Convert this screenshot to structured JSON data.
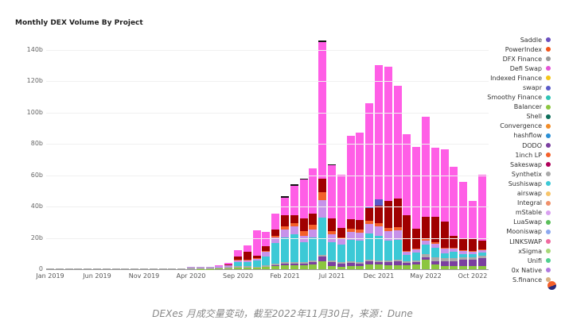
{
  "chart_data": {
    "type": "bar",
    "stacked": true,
    "title": "Monthly DEX Volume By Project",
    "xlabel": "",
    "ylabel": "",
    "ylim": [
      0,
      140
    ],
    "y_unit": "b",
    "yticks": [
      "0",
      "20b",
      "40b",
      "60b",
      "80b",
      "100b",
      "120b",
      "140b"
    ],
    "xticks": [
      "Jan 2019",
      "Jun 2019",
      "Nov 2019",
      "Apr 2020",
      "Sep 2020",
      "Feb 2021",
      "Jul 2021",
      "Dec 2021",
      "May 2022",
      "Oct 2022"
    ],
    "grid": true,
    "legend_position": "right",
    "legend": [
      "Saddle",
      "PowerIndex",
      "DFX Finance",
      "Defi Swap",
      "Indexed Finance",
      "swapr",
      "Smoothy Finance",
      "Balancer",
      "Shell",
      "Convergence",
      "hashflow",
      "DODO",
      "1inch LP",
      "Sakeswap",
      "Synthetix",
      "Sushiswap",
      "airswap",
      "Integral",
      "mStable",
      "LuaSwap",
      "Mooniswap",
      "LINKSWAP",
      "xSigma",
      "Unifi",
      "0x Native",
      "S.finance"
    ],
    "legend_colors": [
      "#6a4fbf",
      "#f2541b",
      "#999999",
      "#e455d6",
      "#f5c518",
      "#5a5ac8",
      "#2ec4b6",
      "#8cc63f",
      "#0d6e5a",
      "#f28c28",
      "#2a8fd6",
      "#7b3fa0",
      "#f4602a",
      "#b0005a",
      "#aaaaaa",
      "#3cc9d6",
      "#f7c56b",
      "#f0906a",
      "#d9a0f0",
      "#5bbf5b",
      "#8ca8f0",
      "#f06aa0",
      "#a8d878",
      "#4fd090",
      "#b07ae0",
      "#d8b080"
    ],
    "series_colors": {
      "Balancer": "#8cc63f",
      "DODO": "#7b3fa0",
      "Synthetix": "#aaaaaa",
      "Sushiswap": "#3cc9d6",
      "mStable": "#c792ea",
      "1inch LP": "#f4602a",
      "Sakeswap": "#a00000",
      "swapr": "#5a5ac8",
      "Defi Swap": "#ff5ee6",
      "Saddle": "#111111"
    },
    "months": [
      "2019-01",
      "2019-02",
      "2019-03",
      "2019-04",
      "2019-05",
      "2019-06",
      "2019-07",
      "2019-08",
      "2019-09",
      "2019-10",
      "2019-11",
      "2019-12",
      "2020-01",
      "2020-02",
      "2020-03",
      "2020-04",
      "2020-05",
      "2020-06",
      "2020-07",
      "2020-08",
      "2020-09",
      "2020-10",
      "2020-11",
      "2020-12",
      "2021-01",
      "2021-02",
      "2021-03",
      "2021-04",
      "2021-05",
      "2021-06",
      "2021-07",
      "2021-08",
      "2021-09",
      "2021-10",
      "2021-11",
      "2021-12",
      "2022-01",
      "2022-02",
      "2022-03",
      "2022-04",
      "2022-05",
      "2022-06",
      "2022-07",
      "2022-08",
      "2022-09",
      "2022-10",
      "2022-11"
    ],
    "series": [
      {
        "name": "Balancer",
        "values": [
          0,
          0,
          0,
          0,
          0,
          0,
          0,
          0,
          0,
          0,
          0,
          0,
          0,
          0,
          0,
          0,
          0.1,
          0.2,
          0.3,
          0.5,
          1,
          1,
          1,
          1.5,
          2,
          2.5,
          2.5,
          2.5,
          3,
          5,
          2,
          1.5,
          2,
          2,
          3,
          3,
          2.5,
          2.5,
          2.5,
          3,
          6,
          3,
          2,
          2,
          2,
          2,
          2
        ]
      },
      {
        "name": "DODO",
        "values": [
          0,
          0,
          0,
          0,
          0,
          0,
          0,
          0,
          0,
          0,
          0,
          0,
          0,
          0,
          0,
          0,
          0,
          0,
          0,
          0,
          0,
          0,
          0,
          0,
          0.5,
          1,
          1,
          1,
          1.5,
          3,
          2.5,
          2,
          2,
          1.5,
          2,
          1.5,
          2,
          2.5,
          1.5,
          1.5,
          1.5,
          2,
          3,
          3,
          4,
          4,
          5
        ]
      },
      {
        "name": "Synthetix",
        "values": [
          0.3,
          0.3,
          0.3,
          0.3,
          0.3,
          0.3,
          0.3,
          0.3,
          0.3,
          0.3,
          0.3,
          0.3,
          0.4,
          0.5,
          0.6,
          0.8,
          0.8,
          0.6,
          0.8,
          1,
          0.8,
          0.8,
          0.6,
          0.8,
          1,
          1,
          1,
          1,
          1,
          1,
          1,
          1,
          1,
          1,
          1,
          1,
          1,
          1,
          1,
          1,
          2,
          2.5,
          2,
          2,
          1.5,
          1.5,
          1.5
        ]
      },
      {
        "name": "Sushiswap",
        "values": [
          0,
          0,
          0,
          0,
          0,
          0,
          0,
          0,
          0,
          0,
          0,
          0,
          0,
          0,
          0,
          0,
          0,
          0,
          0,
          0,
          3,
          3,
          4,
          6,
          13,
          16,
          18,
          13,
          15,
          24,
          12,
          11,
          14,
          14,
          17,
          16,
          13,
          13,
          4,
          5,
          6,
          6,
          3,
          4,
          2,
          2,
          2
        ]
      },
      {
        "name": "mStable",
        "values": [
          0,
          0,
          0,
          0,
          0,
          0,
          0,
          0,
          0,
          0,
          0,
          0,
          0,
          0,
          0,
          0.5,
          0.8,
          0.8,
          0.8,
          1,
          1,
          1,
          1,
          3,
          4,
          5,
          5,
          4,
          5,
          11,
          5,
          4,
          5,
          5,
          6,
          6,
          6,
          6,
          2,
          2,
          3,
          3,
          3,
          2,
          2,
          1.5,
          1.5
        ]
      },
      {
        "name": "1inch LP",
        "values": [
          0,
          0,
          0,
          0,
          0,
          0,
          0,
          0,
          0,
          0,
          0,
          0,
          0,
          0,
          0,
          0,
          0,
          0,
          0,
          0,
          0.3,
          0.3,
          0.3,
          0.5,
          1,
          2,
          2,
          3,
          3,
          5,
          2,
          1,
          2,
          2,
          2,
          2,
          2,
          2,
          0.5,
          0.5,
          1,
          1,
          0.5,
          0.5,
          0.5,
          0.5,
          0.5
        ]
      },
      {
        "name": "Sakeswap",
        "values": [
          0,
          0,
          0,
          0,
          0,
          0,
          0,
          0,
          0,
          0,
          0,
          0,
          0,
          0,
          0,
          0,
          0,
          0,
          0.3,
          0.8,
          2,
          5,
          2,
          3,
          4,
          7,
          5,
          8,
          7,
          9,
          8,
          6,
          6,
          6,
          8,
          11,
          17,
          18,
          23,
          13,
          14,
          16,
          17,
          8,
          8,
          8,
          6
        ]
      },
      {
        "name": "swapr",
        "values": [
          0,
          0,
          0,
          0,
          0,
          0,
          0,
          0,
          0,
          0,
          0,
          0,
          0,
          0,
          0,
          0,
          0,
          0,
          0,
          0,
          0,
          0,
          0,
          0,
          0,
          0,
          0,
          0,
          0,
          0,
          0,
          0,
          0,
          0,
          1,
          4,
          0,
          0,
          0,
          0,
          0,
          0,
          0,
          0,
          0,
          0,
          0
        ]
      },
      {
        "name": "Defi Swap",
        "values": [
          0,
          0,
          0,
          0,
          0,
          0,
          0,
          0,
          0,
          0,
          0,
          0,
          0,
          0,
          0,
          0,
          0,
          0,
          0.5,
          0.8,
          4,
          4,
          16,
          9,
          10,
          11,
          19,
          25,
          29,
          87,
          34,
          34,
          53,
          56,
          66,
          86,
          86,
          72,
          52,
          52,
          64,
          44,
          46,
          44,
          36,
          24,
          42
        ]
      },
      {
        "name": "Saddle",
        "values": [
          0,
          0,
          0,
          0,
          0,
          0,
          0,
          0,
          0,
          0,
          0,
          0,
          0,
          0,
          0,
          0,
          0,
          0,
          0,
          0,
          0,
          0,
          0,
          0,
          0,
          1,
          1,
          0.5,
          0,
          1,
          0.5,
          0,
          0,
          0,
          0,
          0,
          0,
          0,
          0,
          0,
          0,
          0,
          0,
          0,
          0,
          0,
          0
        ]
      }
    ],
    "totals_approx": [
      0.3,
      0.3,
      0.3,
      0.3,
      0.3,
      0.3,
      0.3,
      0.3,
      0.3,
      0.3,
      0.3,
      0.3,
      0.4,
      0.5,
      0.6,
      1.3,
      1.7,
      1.6,
      2.7,
      4.1,
      12,
      14,
      25,
      24,
      35,
      46,
      55,
      58,
      64,
      146,
      67,
      61,
      85,
      88,
      106,
      130,
      130,
      118,
      86,
      78,
      98,
      77,
      76,
      66,
      56,
      40,
      61
    ]
  },
  "caption": "DEXes 月成交量变动，截至2022年11月30日，来源：Dune"
}
